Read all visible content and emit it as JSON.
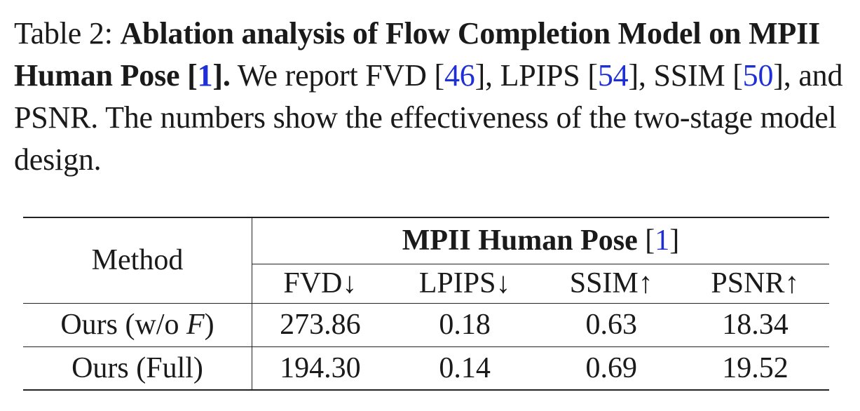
{
  "caption": {
    "label": "Table 2:",
    "bold_title_part1": "Ablation analysis of Flow Completion Model on MPII Human Pose [",
    "bold_title_cite": "1",
    "bold_title_part2": "].",
    "text_part1": " We report FVD [",
    "cite_fvd": "46",
    "text_part2": "], LPIPS [",
    "cite_lpips": "54",
    "text_part3": "], SSIM [",
    "cite_ssim": "50",
    "text_part4": "], and PSNR. The numbers show the effectiveness of the two-stage model design."
  },
  "table": {
    "method_header": "Method",
    "group_header": "MPII Human Pose",
    "group_cite_open": " [",
    "group_cite": "1",
    "group_cite_close": "]",
    "columns": [
      "FVD↓",
      "LPIPS↓",
      "SSIM↑",
      "PSNR↑"
    ],
    "rows": [
      {
        "method_prefix": "Ours (w/o ",
        "method_var": "F",
        "method_suffix": ")",
        "values": [
          "273.86",
          "0.18",
          "0.63",
          "18.34"
        ]
      },
      {
        "method_prefix": "Ours (Full)",
        "method_var": "",
        "method_suffix": "",
        "values": [
          "194.30",
          "0.14",
          "0.69",
          "19.52"
        ]
      }
    ]
  }
}
